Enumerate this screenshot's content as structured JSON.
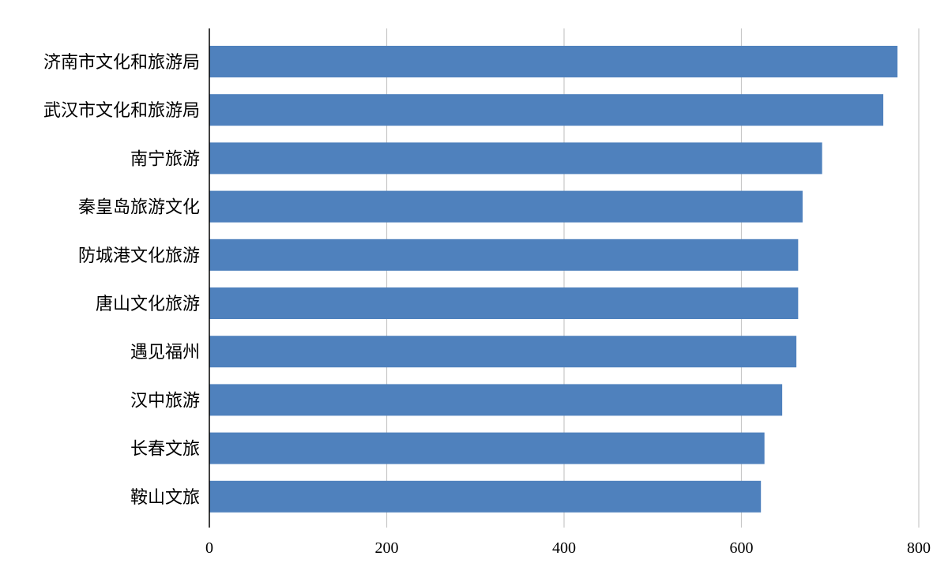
{
  "chart_data": {
    "type": "bar",
    "orientation": "horizontal",
    "categories": [
      "济南市文化和旅游局",
      "武汉市文化和旅游局",
      "南宁旅游",
      "秦皇岛旅游文化",
      "防城港文化旅游",
      "唐山文化旅游",
      "遇见福州",
      "汉中旅游",
      "长春文旅",
      "鞍山文旅"
    ],
    "values": [
      776,
      760,
      691,
      669,
      664,
      664,
      662,
      646,
      626,
      622
    ],
    "xlim": [
      0,
      800
    ],
    "xticks": [
      0,
      200,
      400,
      600,
      800
    ],
    "title": "",
    "xlabel": "",
    "ylabel": "",
    "grid": "vertical",
    "legend": "none",
    "bar_color": "#4f81bd"
  }
}
